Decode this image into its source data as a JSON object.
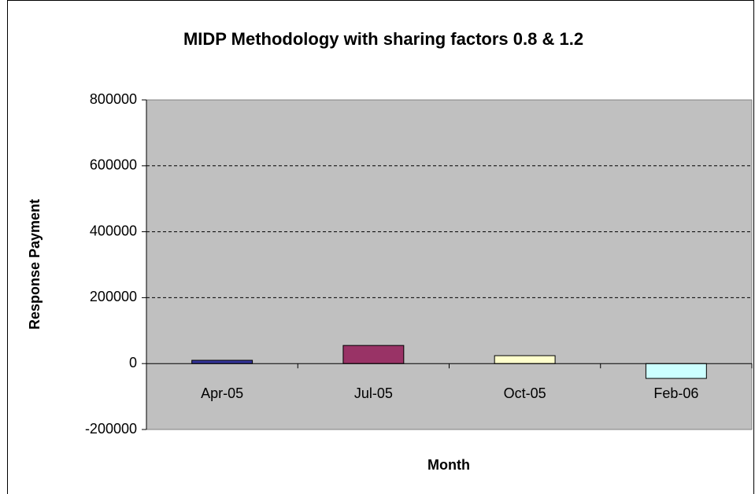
{
  "chart_data": {
    "type": "bar",
    "title": "MIDP Methodology with sharing factors 0.8 & 1.2",
    "x_label": "Month",
    "y_label": "Response Payment",
    "categories": [
      "Apr-05",
      "Jul-05",
      "Oct-05",
      "Feb-06"
    ],
    "values": [
      10000,
      55000,
      24000,
      -45000
    ],
    "colors": [
      "#333399",
      "#993366",
      "#FFFFCC",
      "#CCFFFF"
    ],
    "ylim": [
      -200000,
      800000
    ],
    "yticks": [
      -200000,
      0,
      200000,
      400000,
      600000,
      800000
    ],
    "grid": true
  }
}
